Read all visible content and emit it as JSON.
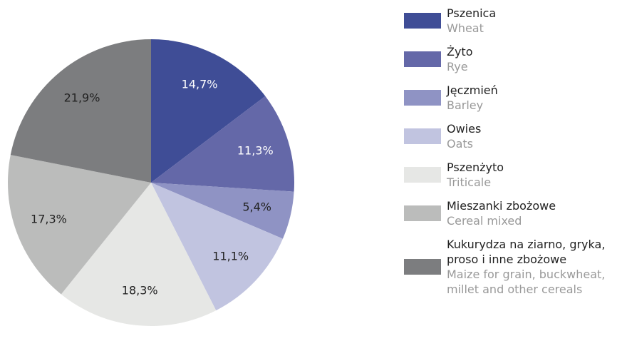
{
  "chart_data": {
    "type": "pie",
    "categories": [
      "Pszenica",
      "Żyto",
      "Jęczmień",
      "Owies",
      "Pszenżyto",
      "Mieszanki zbożowe",
      "Kukurydza na ziarno, gryka, proso i inne zbożowe"
    ],
    "translations": [
      "Wheat",
      "Rye",
      "Barley",
      "Oats",
      "Triticale",
      "Cereal mixed",
      "Maize for grain, buckwheat, millet and other cereals"
    ],
    "values": [
      14.7,
      11.3,
      5.4,
      11.1,
      18.3,
      17.3,
      21.9
    ],
    "value_labels": [
      "14,7%",
      "11,3%",
      "5,4%",
      "11,1%",
      "18,3%",
      "17,3%",
      "21,9%"
    ],
    "colors": [
      "#3f4d96",
      "#6468a8",
      "#8f93c4",
      "#c1c4e0",
      "#e6e7e5",
      "#bbbcbb",
      "#7c7d7f"
    ]
  }
}
